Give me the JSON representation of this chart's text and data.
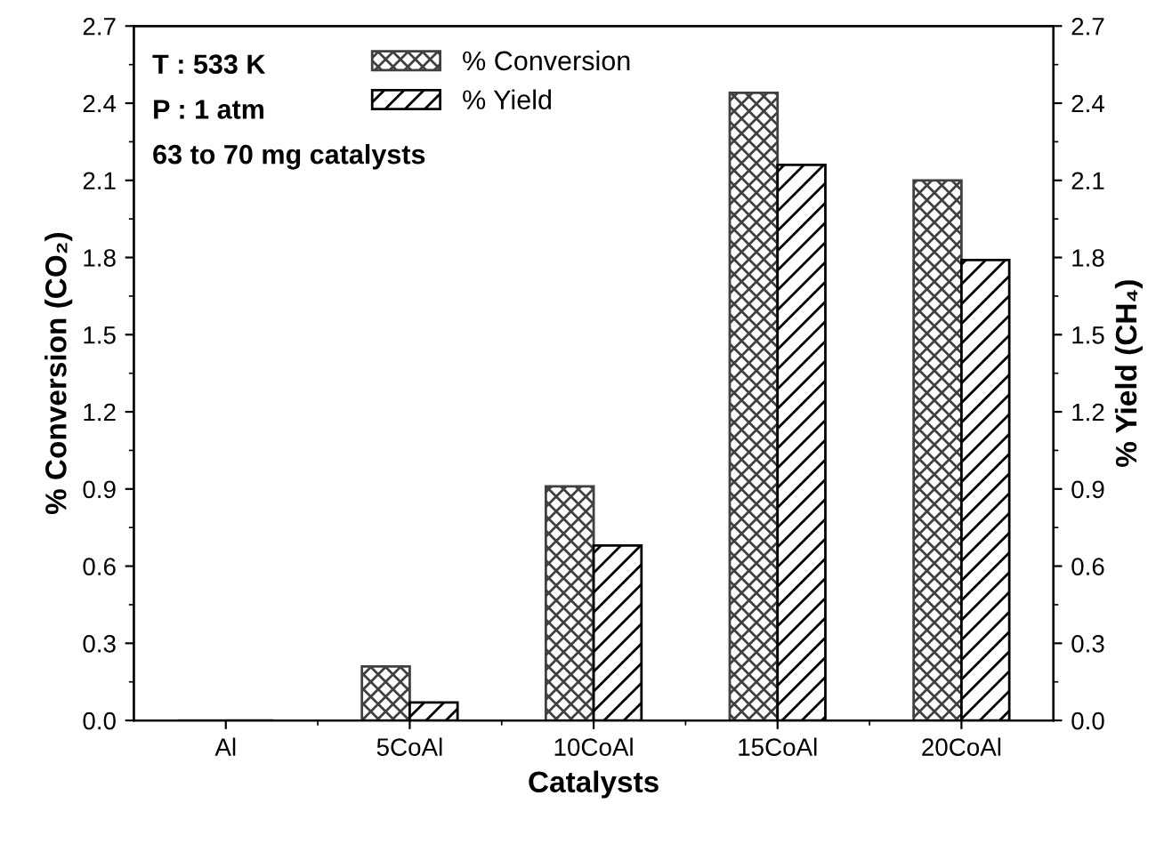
{
  "chart_data": {
    "type": "bar",
    "xlabel": "Catalysts",
    "ylabel": "% Conversion (CO₂)",
    "y2label": "% Yield (CH₄)",
    "categories": [
      "Al",
      "5CoAl",
      "10CoAl",
      "15CoAl",
      "20CoAl"
    ],
    "series": [
      {
        "name": "% Conversion",
        "color": "#404040",
        "values": [
          0,
          0.21,
          0.91,
          2.44,
          2.1
        ]
      },
      {
        "name": "% Yield",
        "color": "#000000",
        "values": [
          0,
          0.07,
          0.68,
          2.16,
          1.79
        ]
      }
    ],
    "ylim": [
      0,
      2.7
    ],
    "yticks": [
      {
        "value": 0,
        "label": "0.0"
      },
      0.3,
      0.6,
      0.9,
      1.2,
      1.5,
      1.8,
      2.1,
      2.4,
      2.7
    ],
    "y2lim": [
      0,
      2.7
    ],
    "y2ticks": [
      {
        "value": 0,
        "label": "0.0"
      },
      0.3,
      0.6,
      0.9,
      1.2,
      1.5,
      1.8,
      2.1,
      2.4,
      2.7
    ],
    "annotations": [
      "T : 533 K",
      "P : 1 atm",
      "63 to 70 mg catalysts"
    ],
    "legend": "top",
    "grid": false
  }
}
